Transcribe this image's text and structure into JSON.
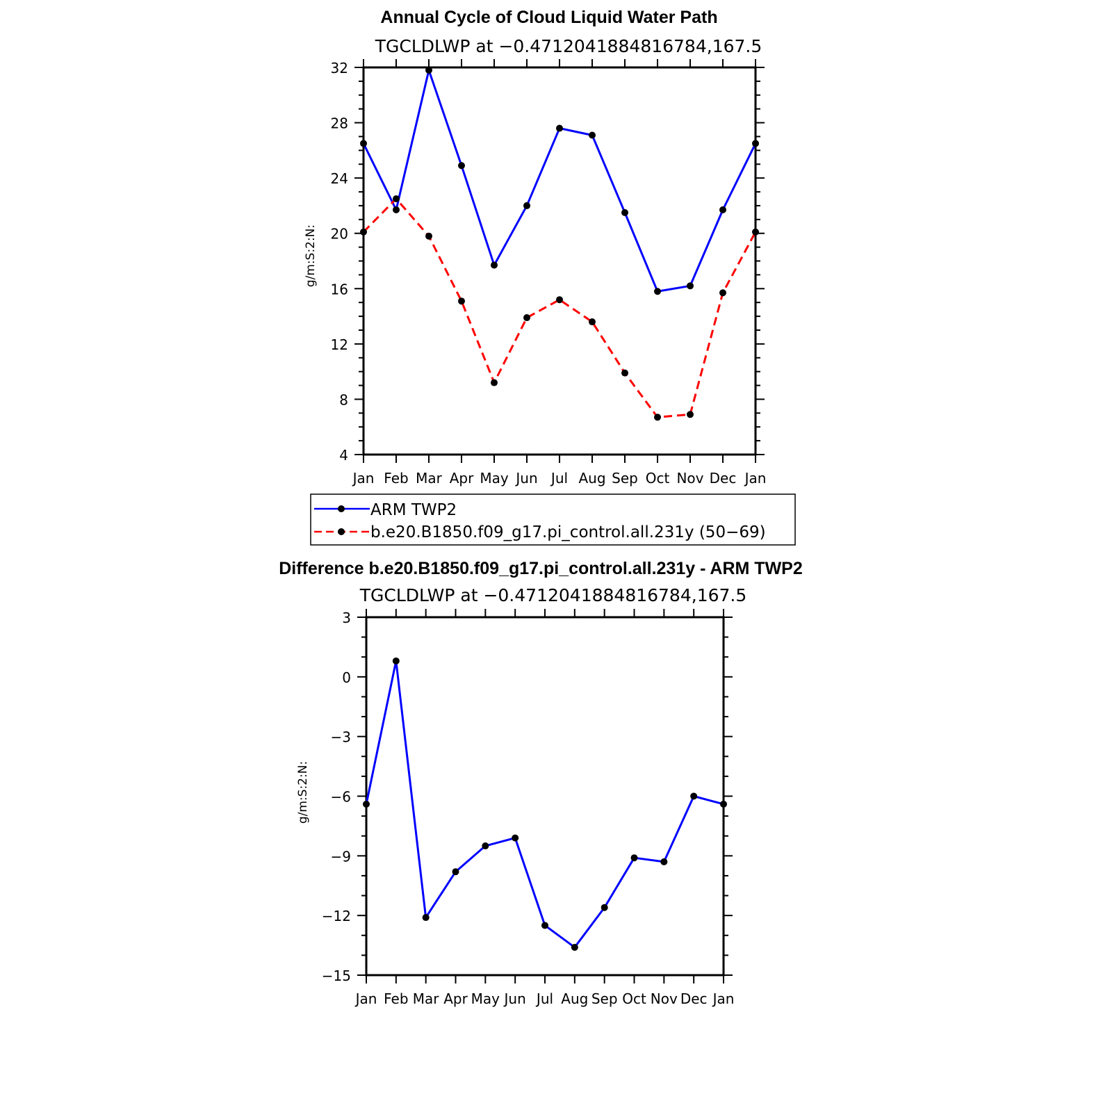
{
  "chart_data": [
    {
      "type": "line",
      "title": "Annual Cycle of Cloud Liquid Water Path",
      "subtitle": "TGCLDLWP at −0.4712041884816784,167.5",
      "xlabel": "",
      "ylabel": "g/m:S:2:N:",
      "categories": [
        "Jan",
        "Feb",
        "Mar",
        "Apr",
        "May",
        "Jun",
        "Jul",
        "Aug",
        "Sep",
        "Oct",
        "Nov",
        "Dec",
        "Jan"
      ],
      "ylim": [
        4,
        32
      ],
      "ytick_labels": [
        "4",
        "8",
        "12",
        "16",
        "20",
        "24",
        "28",
        "32"
      ],
      "series": [
        {
          "name": "ARM TWP2",
          "color": "#0000ff",
          "dash": "solid",
          "values": [
            26.5,
            21.7,
            31.8,
            24.9,
            17.7,
            22.0,
            27.6,
            27.1,
            21.5,
            15.8,
            16.2,
            21.7,
            26.5
          ]
        },
        {
          "name": "b.e20.B1850.f09_g17.pi_control.all.231y (50−69)",
          "color": "#ff0000",
          "dash": "dashed",
          "values": [
            20.1,
            22.5,
            19.8,
            15.1,
            9.2,
            13.9,
            15.2,
            13.6,
            9.9,
            6.7,
            6.9,
            15.7,
            20.1
          ]
        }
      ],
      "legend": "below"
    },
    {
      "type": "line",
      "title": "Difference b.e20.B1850.f09_g17.pi_control.all.231y - ARM TWP2",
      "subtitle": "TGCLDLWP at −0.4712041884816784,167.5",
      "xlabel": "",
      "ylabel": "g/m:S:2:N:",
      "categories": [
        "Jan",
        "Feb",
        "Mar",
        "Apr",
        "May",
        "Jun",
        "Jul",
        "Aug",
        "Sep",
        "Oct",
        "Nov",
        "Dec",
        "Jan"
      ],
      "ylim": [
        -15,
        3
      ],
      "ytick_labels": [
        "−15",
        "−12",
        "−9",
        "−6",
        "−3",
        "0",
        "3"
      ],
      "series": [
        {
          "name": "Difference",
          "color": "#0000ff",
          "dash": "solid",
          "values": [
            -6.4,
            0.8,
            -12.1,
            -9.8,
            -8.5,
            -8.1,
            -12.5,
            -13.6,
            -11.6,
            -9.1,
            -9.3,
            -6.0,
            -6.4
          ]
        }
      ]
    }
  ]
}
